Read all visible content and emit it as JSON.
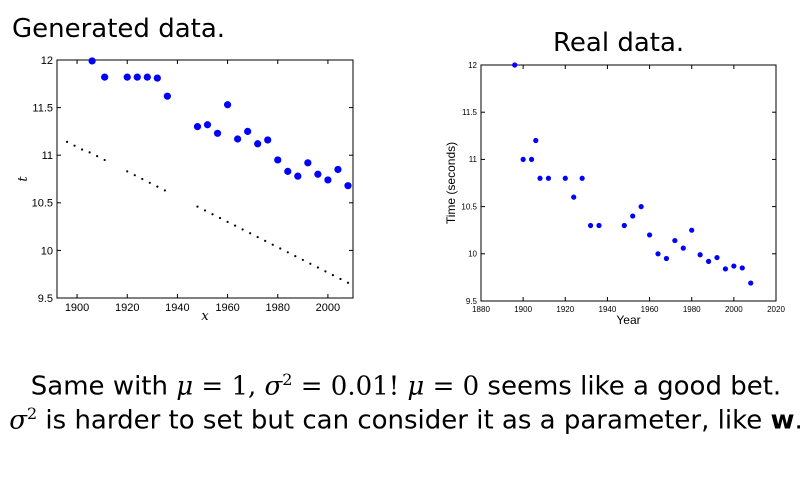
{
  "titles": {
    "left": "Generated data.",
    "right": "Real data."
  },
  "caption": {
    "l1_a": "Same with ",
    "l1_mu": "μ",
    "l1_eq1": " = 1, ",
    "l1_sigma": "σ",
    "l1_sq": "2",
    "l1_eq2": " = 0.01! ",
    "l1_mu2": "μ",
    "l1_eq3": " = 0",
    "l1_b": " seems like a good bet.",
    "l2_sigma": "σ",
    "l2_sq": "2",
    "l2_a": " is harder to set but can consider it as a parameter, like ",
    "l2_w": "w",
    "l2_b": "."
  },
  "colors": {
    "marker": "#0000ff",
    "dots": "#000000",
    "axis": "#000000"
  },
  "chart_data": [
    {
      "type": "scatter",
      "xlabel": "x",
      "ylabel": "t",
      "xlim": [
        1892,
        2010
      ],
      "ylim": [
        9.5,
        12
      ],
      "xticks": [
        1900,
        1920,
        1940,
        1960,
        1980,
        2000
      ],
      "yticks": [
        9.5,
        10,
        10.5,
        11,
        11.5,
        12
      ],
      "ytick_labels": [
        "9.5",
        "10",
        "10.5",
        "11",
        "11.5",
        "12"
      ],
      "series": [
        {
          "marker": "large-dot",
          "points": [
            [
              1906,
              11.99
            ],
            [
              1911,
              11.82
            ],
            [
              1920,
              11.82
            ],
            [
              1924,
              11.82
            ],
            [
              1928,
              11.82
            ],
            [
              1932,
              11.81
            ],
            [
              1936,
              11.62
            ],
            [
              1948,
              11.3
            ],
            [
              1952,
              11.32
            ],
            [
              1956,
              11.23
            ],
            [
              1960,
              11.53
            ],
            [
              1964,
              11.17
            ],
            [
              1968,
              11.25
            ],
            [
              1972,
              11.12
            ],
            [
              1976,
              11.16
            ],
            [
              1980,
              10.95
            ],
            [
              1984,
              10.83
            ],
            [
              1988,
              10.78
            ],
            [
              1992,
              10.92
            ],
            [
              1996,
              10.8
            ],
            [
              2000,
              10.74
            ],
            [
              2004,
              10.85
            ],
            [
              2008,
              10.68
            ]
          ]
        },
        {
          "marker": "small-dot",
          "points": [
            [
              1896,
              11.14
            ],
            [
              1899,
              11.1
            ],
            [
              1902,
              11.06
            ],
            [
              1905,
              11.03
            ],
            [
              1908,
              10.99
            ],
            [
              1911,
              10.95
            ],
            [
              1920,
              10.83
            ],
            [
              1923,
              10.79
            ],
            [
              1926,
              10.75
            ],
            [
              1929,
              10.71
            ],
            [
              1932,
              10.67
            ],
            [
              1935,
              10.63
            ],
            [
              1948,
              10.46
            ],
            [
              1951,
              10.42
            ],
            [
              1954,
              10.38
            ],
            [
              1957,
              10.34
            ],
            [
              1960,
              10.3
            ],
            [
              1963,
              10.26
            ],
            [
              1966,
              10.22
            ],
            [
              1969,
              10.18
            ],
            [
              1972,
              10.14
            ],
            [
              1975,
              10.1
            ],
            [
              1978,
              10.06
            ],
            [
              1981,
              10.02
            ],
            [
              1984,
              9.98
            ],
            [
              1987,
              9.94
            ],
            [
              1990,
              9.9
            ],
            [
              1993,
              9.86
            ],
            [
              1996,
              9.82
            ],
            [
              1999,
              9.78
            ],
            [
              2002,
              9.74
            ],
            [
              2005,
              9.7
            ],
            [
              2008,
              9.66
            ]
          ]
        }
      ]
    },
    {
      "type": "scatter",
      "xlabel": "Year",
      "ylabel": "Time (seconds)",
      "xlim": [
        1880,
        2020
      ],
      "ylim": [
        9.5,
        12
      ],
      "xticks": [
        1880,
        1900,
        1920,
        1940,
        1960,
        1980,
        2000,
        2020
      ],
      "yticks": [
        9.5,
        10,
        10.5,
        11,
        11.5,
        12
      ],
      "ytick_labels": [
        "9.5",
        "10",
        "10.5",
        "11",
        "11.5",
        "12"
      ],
      "series": [
        {
          "marker": "dot",
          "points": [
            [
              1896,
              12.0
            ],
            [
              1900,
              11.0
            ],
            [
              1904,
              11.0
            ],
            [
              1906,
              11.2
            ],
            [
              1908,
              10.8
            ],
            [
              1912,
              10.8
            ],
            [
              1920,
              10.8
            ],
            [
              1924,
              10.6
            ],
            [
              1928,
              10.8
            ],
            [
              1932,
              10.3
            ],
            [
              1936,
              10.3
            ],
            [
              1948,
              10.3
            ],
            [
              1952,
              10.4
            ],
            [
              1956,
              10.5
            ],
            [
              1960,
              10.2
            ],
            [
              1964,
              10.0
            ],
            [
              1968,
              9.95
            ],
            [
              1972,
              10.14
            ],
            [
              1976,
              10.06
            ],
            [
              1980,
              10.25
            ],
            [
              1984,
              9.99
            ],
            [
              1988,
              9.92
            ],
            [
              1992,
              9.96
            ],
            [
              1996,
              9.84
            ],
            [
              2000,
              9.87
            ],
            [
              2004,
              9.85
            ],
            [
              2008,
              9.69
            ]
          ]
        }
      ]
    }
  ]
}
